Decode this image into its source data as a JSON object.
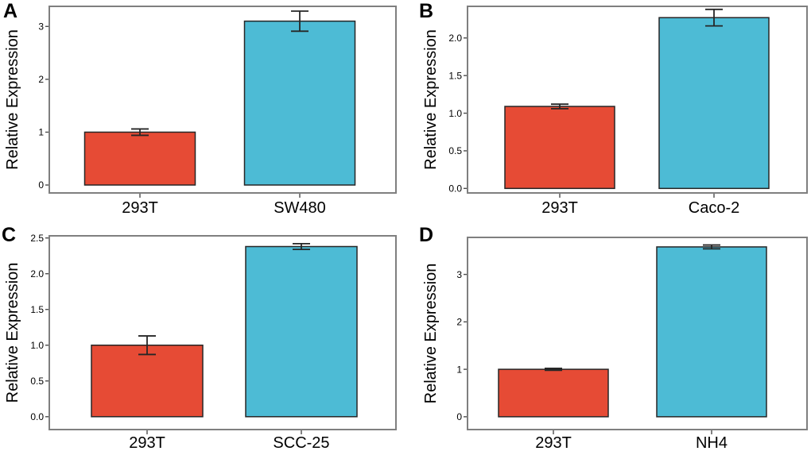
{
  "colors": {
    "bar_293T": "#E64B35",
    "bar_test": "#4DBBD5",
    "plot_border": "#7f7f7f",
    "bar_border": "#262626",
    "tick": "#4d4d4d",
    "text": "#000000"
  },
  "chart_data": [
    {
      "type": "bar",
      "panel": "A",
      "title": "",
      "xlabel": "",
      "ylabel": "Relative Expression",
      "categories": [
        "293T",
        "SW480"
      ],
      "values": [
        1.0,
        3.1
      ],
      "errors": [
        0.06,
        0.19
      ],
      "yticks": [
        0,
        1,
        2,
        3
      ],
      "ytick_labels": [
        "0",
        "1",
        "2",
        "3"
      ],
      "ylim": [
        -0.15,
        3.38
      ],
      "bar_colors": [
        "#E64B35",
        "#4DBBD5"
      ],
      "grid": false,
      "legend": false
    },
    {
      "type": "bar",
      "panel": "B",
      "title": "",
      "xlabel": "",
      "ylabel": "Relative Expression",
      "categories": [
        "293T",
        "Caco-2"
      ],
      "values": [
        1.09,
        2.27
      ],
      "errors": [
        0.03,
        0.11
      ],
      "yticks": [
        0,
        0.5,
        1,
        1.5,
        2
      ],
      "ytick_labels": [
        "0.0",
        "0.5",
        "1.0",
        "1.5",
        "2.0"
      ],
      "ylim": [
        -0.06,
        2.42
      ],
      "bar_colors": [
        "#E64B35",
        "#4DBBD5"
      ],
      "grid": false,
      "legend": false
    },
    {
      "type": "bar",
      "panel": "C",
      "title": "",
      "xlabel": "",
      "ylabel": "Relative Expression",
      "categories": [
        "293T",
        "SCC-25"
      ],
      "values": [
        1.0,
        2.38
      ],
      "errors": [
        0.13,
        0.04
      ],
      "yticks": [
        0,
        0.5,
        1,
        1.5,
        2,
        2.5
      ],
      "ytick_labels": [
        "0.0",
        "0.5",
        "1.0",
        "1.5",
        "2.0",
        "2.5"
      ],
      "ylim": [
        -0.18,
        2.53
      ],
      "bar_colors": [
        "#E64B35",
        "#4DBBD5"
      ],
      "grid": false,
      "legend": false
    },
    {
      "type": "bar",
      "panel": "D",
      "title": "",
      "xlabel": "",
      "ylabel": "Relative Expression",
      "categories": [
        "293T",
        "NH4"
      ],
      "values": [
        1.0,
        3.58
      ],
      "errors": [
        0.02,
        0.04
      ],
      "yticks": [
        0,
        1,
        2,
        3
      ],
      "ytick_labels": [
        "0",
        "1",
        "2",
        "3"
      ],
      "ylim": [
        -0.27,
        3.78
      ],
      "bar_colors": [
        "#E64B35",
        "#4DBBD5"
      ],
      "grid": false,
      "legend": false
    }
  ]
}
